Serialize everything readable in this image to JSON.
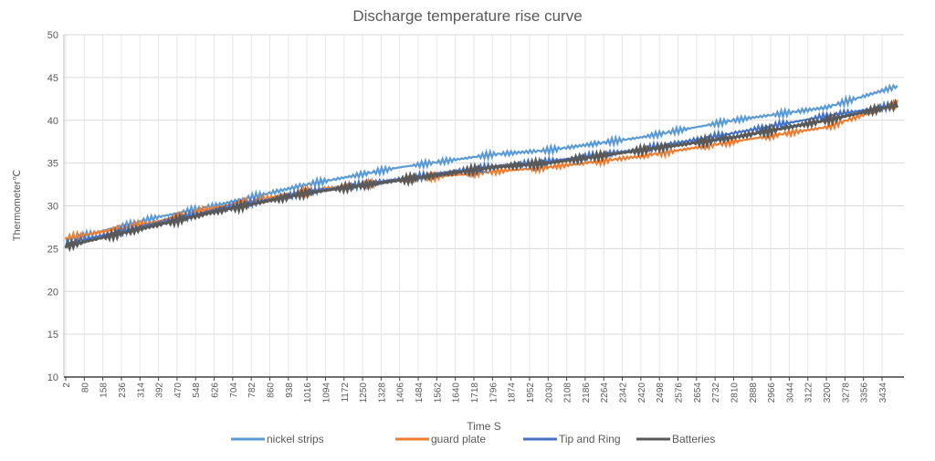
{
  "chart_data": {
    "type": "line",
    "title": "Discharge temperature rise curve",
    "xlabel": "Time  S",
    "ylabel": "Thermometer℃",
    "ylim": [
      10,
      50
    ],
    "yticks": [
      10,
      15,
      20,
      25,
      30,
      35,
      40,
      45,
      50
    ],
    "xlim": [
      2,
      3510
    ],
    "xticks": [
      2,
      80,
      158,
      236,
      314,
      392,
      470,
      548,
      626,
      704,
      782,
      860,
      938,
      1016,
      1094,
      1172,
      1250,
      1328,
      1406,
      1484,
      1562,
      1640,
      1718,
      1796,
      1874,
      1952,
      2030,
      2108,
      2186,
      2264,
      2342,
      2420,
      2498,
      2576,
      2654,
      2732,
      2810,
      2888,
      2966,
      3044,
      3122,
      3200,
      3278,
      3356,
      3434
    ],
    "grid": true,
    "legend": "bottom",
    "series": [
      {
        "name": "nickel strips",
        "color": "#5b9bd5",
        "x": [
          2,
          392,
          626,
          1016,
          1406,
          1796,
          2030,
          2420,
          2810,
          3200,
          3500
        ],
        "y": [
          26.0,
          28.7,
          30.0,
          32.5,
          34.5,
          36.0,
          36.5,
          38.0,
          40.0,
          41.5,
          44.0
        ]
      },
      {
        "name": "guard plate",
        "color": "#ed7d31",
        "x": [
          2,
          392,
          626,
          1016,
          1406,
          1796,
          2030,
          2420,
          2810,
          3200,
          3500
        ],
        "y": [
          26.2,
          28.2,
          29.8,
          31.7,
          33.0,
          34.0,
          34.5,
          35.8,
          37.5,
          39.2,
          42.0
        ]
      },
      {
        "name": "Tip and Ring",
        "color": "#4472c4",
        "x": [
          2,
          392,
          626,
          1016,
          1406,
          1796,
          2030,
          2420,
          2810,
          3200,
          3500
        ],
        "y": [
          25.6,
          28.0,
          29.5,
          31.6,
          33.1,
          34.6,
          35.2,
          36.6,
          38.5,
          40.5,
          41.8
        ]
      },
      {
        "name": "Batteries",
        "color": "#595959",
        "x": [
          2,
          392,
          626,
          1016,
          1406,
          1796,
          2030,
          2420,
          2810,
          3200,
          3500
        ],
        "y": [
          25.3,
          27.8,
          29.3,
          31.5,
          33.0,
          34.5,
          35.0,
          36.5,
          38.0,
          40.0,
          41.8
        ]
      }
    ]
  }
}
